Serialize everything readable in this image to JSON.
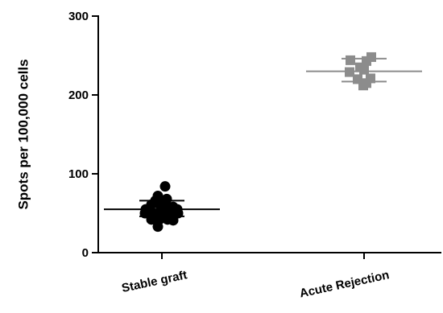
{
  "chart_data": {
    "type": "scatter",
    "title": "",
    "ylabel": "Spots per 100,000 cells",
    "xlabel": "",
    "ylim": [
      0,
      300
    ],
    "yticks": [
      0,
      100,
      200,
      300
    ],
    "ytick_labels": [
      "0",
      "100",
      "200",
      "300"
    ],
    "grid": false,
    "categories": [
      "Stable graft",
      "Acute Rejection"
    ],
    "series": [
      {
        "category": "Stable graft",
        "marker": "circle",
        "color": "#000000",
        "mean": 55,
        "error": [
          46,
          66
        ],
        "points": [
          {
            "offset": 0.04,
            "y": 84
          },
          {
            "offset": -0.05,
            "y": 72
          },
          {
            "offset": 0.06,
            "y": 68
          },
          {
            "offset": -0.08,
            "y": 66
          },
          {
            "offset": 0.0,
            "y": 66
          },
          {
            "offset": -0.13,
            "y": 61
          },
          {
            "offset": -0.04,
            "y": 62
          },
          {
            "offset": 0.05,
            "y": 60
          },
          {
            "offset": 0.14,
            "y": 58
          },
          {
            "offset": -0.2,
            "y": 55
          },
          {
            "offset": -0.01,
            "y": 55
          },
          {
            "offset": 0.19,
            "y": 55
          },
          {
            "offset": -0.21,
            "y": 50
          },
          {
            "offset": -0.11,
            "y": 50
          },
          {
            "offset": -0.02,
            "y": 49
          },
          {
            "offset": 0.09,
            "y": 49
          },
          {
            "offset": 0.2,
            "y": 50
          },
          {
            "offset": -0.13,
            "y": 42
          },
          {
            "offset": -0.03,
            "y": 42
          },
          {
            "offset": 0.07,
            "y": 42
          },
          {
            "offset": 0.14,
            "y": 41
          },
          {
            "offset": -0.05,
            "y": 33
          }
        ]
      },
      {
        "category": "Acute Rejection",
        "marker": "square",
        "color": "#8c8c8c",
        "mean": 230,
        "error": [
          217,
          246
        ],
        "points": [
          {
            "offset": 0.09,
            "y": 248
          },
          {
            "offset": -0.17,
            "y": 244
          },
          {
            "offset": 0.03,
            "y": 243
          },
          {
            "offset": -0.05,
            "y": 235
          },
          {
            "offset": 0.0,
            "y": 232
          },
          {
            "offset": -0.18,
            "y": 229
          },
          {
            "offset": -0.08,
            "y": 220
          },
          {
            "offset": 0.08,
            "y": 221
          },
          {
            "offset": 0.03,
            "y": 215
          },
          {
            "offset": -0.01,
            "y": 212
          }
        ]
      }
    ]
  }
}
